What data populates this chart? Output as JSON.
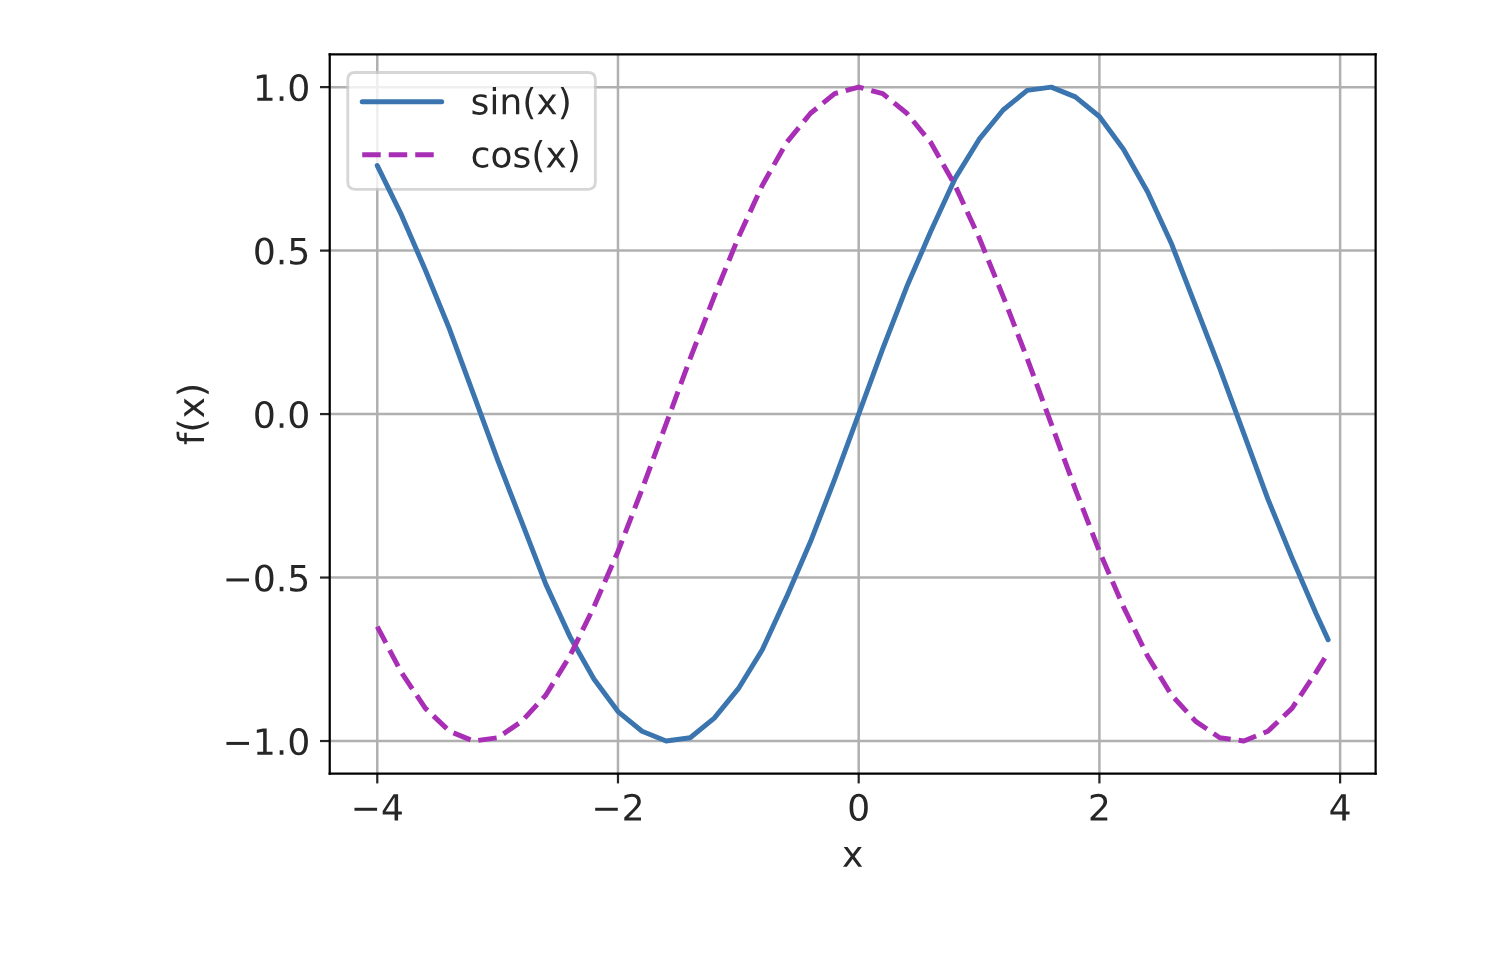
{
  "chart_data": {
    "type": "line",
    "xlabel": "x",
    "ylabel": "f(x)",
    "x": [
      -4.0,
      -3.8,
      -3.6,
      -3.4,
      -3.2,
      -3.0,
      -2.8,
      -2.6,
      -2.4,
      -2.2,
      -2.0,
      -1.8,
      -1.6,
      -1.4,
      -1.2,
      -1.0,
      -0.8,
      -0.6,
      -0.4,
      -0.2,
      0.0,
      0.2,
      0.4,
      0.6,
      0.8,
      1.0,
      1.2,
      1.4,
      1.6,
      1.8,
      2.0,
      2.2,
      2.4,
      2.6,
      2.8,
      3.0,
      3.2,
      3.4,
      3.6,
      3.8,
      3.9
    ],
    "series": [
      {
        "name": "sin(x)",
        "color": "#3b75af",
        "line_style": "solid",
        "values": [
          0.76,
          0.61,
          0.44,
          0.26,
          0.06,
          -0.14,
          -0.33,
          -0.52,
          -0.68,
          -0.81,
          -0.91,
          -0.97,
          -1.0,
          -0.99,
          -0.93,
          -0.84,
          -0.72,
          -0.56,
          -0.39,
          -0.2,
          0.0,
          0.2,
          0.39,
          0.56,
          0.72,
          0.84,
          0.93,
          0.99,
          1.0,
          0.97,
          0.91,
          0.81,
          0.68,
          0.52,
          0.33,
          0.14,
          -0.06,
          -0.26,
          -0.44,
          -0.61,
          -0.69
        ]
      },
      {
        "name": "cos(x)",
        "color": "#a82fb5",
        "line_style": "dashed",
        "values": [
          -0.65,
          -0.79,
          -0.9,
          -0.97,
          -1.0,
          -0.99,
          -0.94,
          -0.86,
          -0.74,
          -0.59,
          -0.42,
          -0.23,
          -0.03,
          0.17,
          0.36,
          0.54,
          0.7,
          0.83,
          0.92,
          0.98,
          1.0,
          0.98,
          0.92,
          0.83,
          0.7,
          0.54,
          0.36,
          0.17,
          -0.03,
          -0.23,
          -0.42,
          -0.59,
          -0.74,
          -0.86,
          -0.94,
          -0.99,
          -1.0,
          -0.97,
          -0.9,
          -0.79,
          -0.73
        ]
      }
    ],
    "xlim": [
      -4.395,
      4.295
    ],
    "ylim": [
      -1.1,
      1.1
    ],
    "xticks": [
      {
        "value": -4,
        "label": "−4"
      },
      {
        "value": -2,
        "label": "−2"
      },
      0,
      2,
      4
    ],
    "yticks": [
      {
        "value": -1.0,
        "label": "−1.0"
      },
      {
        "value": -0.5,
        "label": "−0.5"
      },
      {
        "value": 0.0,
        "label": "0.0"
      },
      {
        "value": 0.5,
        "label": "0.5"
      },
      {
        "value": 1.0,
        "label": "1.0"
      }
    ],
    "grid": true,
    "legend": "top left",
    "marker": "none"
  }
}
